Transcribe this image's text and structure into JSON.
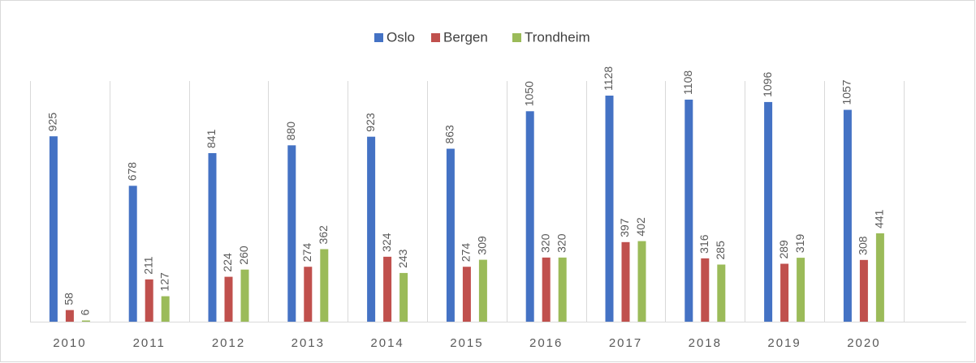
{
  "chart_data": {
    "type": "bar",
    "categories": [
      "2010",
      "2011",
      "2012",
      "2013",
      "2014",
      "2015",
      "2016",
      "2017",
      "2018",
      "2019",
      "2020"
    ],
    "series": [
      {
        "name": "Oslo",
        "color": "#4472c4",
        "values": [
          925,
          678,
          841,
          880,
          923,
          863,
          1050,
          1128,
          1108,
          1096,
          1057
        ]
      },
      {
        "name": "Bergen",
        "color": "#c0504d",
        "values": [
          58,
          211,
          224,
          274,
          324,
          274,
          320,
          397,
          316,
          289,
          308
        ]
      },
      {
        "name": "Trondheim",
        "color": "#9bbb59",
        "values": [
          6,
          127,
          260,
          362,
          243,
          309,
          320,
          402,
          285,
          319,
          441
        ]
      }
    ],
    "legend": "top",
    "grid": true
  }
}
